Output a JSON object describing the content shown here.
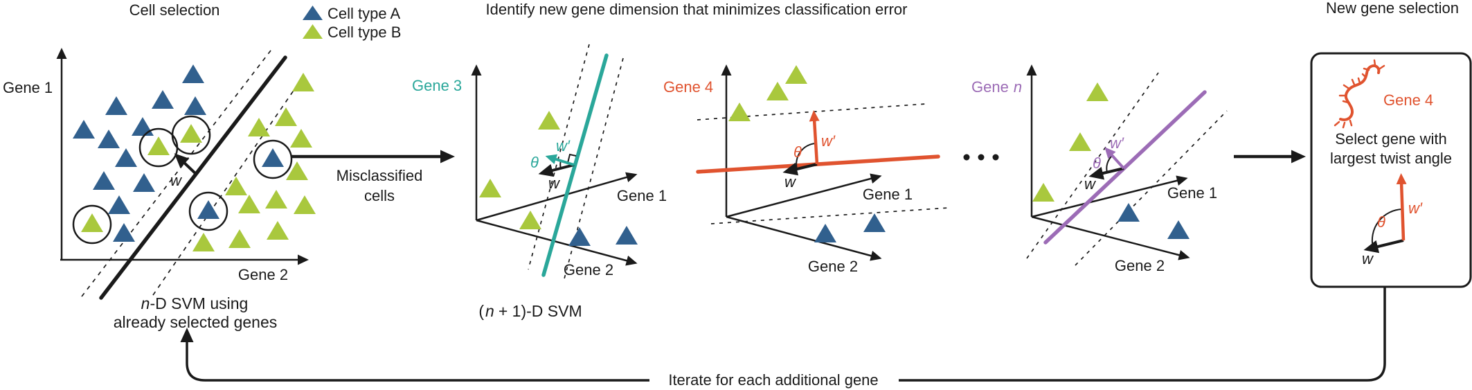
{
  "colors": {
    "ink": "#1a1a1a",
    "blue": "#31608e",
    "green": "#a9c83d",
    "teal": "#2aa79a",
    "orange": "#e0532f",
    "purple": "#9c6cb6"
  },
  "header": {
    "cell_selection": "Cell selection",
    "identify": "Identify new gene dimension that minimizes classification error",
    "new_gene_selection": "New gene selection"
  },
  "legend": {
    "type_a": "Cell type A",
    "type_b": "Cell type B"
  },
  "left_plot": {
    "y_axis_label": "Gene 1",
    "x_axis_label": "Gene 2",
    "w_label": "w",
    "caption": {
      "italic_n": "n",
      "line1_rest": "-D SVM using",
      "line2": "already selected genes"
    },
    "blue_points": [
      [
        279,
        107
      ],
      [
        235,
        144
      ],
      [
        282,
        153
      ],
      [
        168,
        153
      ],
      [
        121,
        187
      ],
      [
        206,
        183
      ],
      [
        157,
        201
      ],
      [
        182,
        228
      ],
      [
        150,
        261
      ],
      [
        208,
        264
      ],
      [
        172,
        296
      ],
      [
        179,
        336
      ],
      [
        301,
        303
      ],
      [
        394,
        228
      ]
    ],
    "green_points": [
      [
        438,
        119
      ],
      [
        413,
        169
      ],
      [
        374,
        184
      ],
      [
        435,
        200
      ],
      [
        276,
        193
      ],
      [
        229,
        211
      ],
      [
        341,
        269
      ],
      [
        429,
        247
      ],
      [
        360,
        295
      ],
      [
        399,
        288
      ],
      [
        440,
        296
      ],
      [
        133,
        322
      ],
      [
        294,
        350
      ],
      [
        346,
        345
      ],
      [
        401,
        333
      ]
    ],
    "circles": [
      [
        276,
        195
      ],
      [
        229,
        213
      ],
      [
        133,
        324
      ],
      [
        301,
        305
      ],
      [
        394,
        230
      ]
    ]
  },
  "flow": {
    "misclassified_line1": "Misclassified",
    "misclassified_line2": "cells",
    "iterate": "Iterate for each additional gene"
  },
  "svm_caption": {
    "open": "(",
    "italic_n": "n",
    "rest": "+ 1)-D SVM"
  },
  "gene3": {
    "label": "Gene 3",
    "axis1": "Gene 1",
    "axis2": "Gene 2",
    "w": "w",
    "w_prime": "w′",
    "theta": "θ",
    "green_points": [
      [
        793,
        174
      ],
      [
        708,
        272
      ],
      [
        766,
        318
      ]
    ],
    "blue_points": [
      [
        837,
        342
      ],
      [
        905,
        340
      ]
    ]
  },
  "gene4": {
    "label": "Gene 4",
    "axis1": "Gene 1",
    "axis2": "Gene 2",
    "w": "w",
    "w_prime": "w′",
    "theta": "θ",
    "green_points": [
      [
        1150,
        108
      ],
      [
        1123,
        132
      ],
      [
        1068,
        162
      ]
    ],
    "blue_points": [
      [
        1192,
        337
      ],
      [
        1263,
        322
      ]
    ]
  },
  "gene_n": {
    "label_prefix": "Gene",
    "label_italic": "n",
    "axis1": "Gene 1",
    "axis2": "Gene 2",
    "w": "w",
    "w_prime": "w′",
    "theta": "θ",
    "green_points": [
      [
        1585,
        133
      ],
      [
        1560,
        205
      ],
      [
        1507,
        278
      ]
    ],
    "blue_points": [
      [
        1630,
        307
      ],
      [
        1702,
        332
      ]
    ]
  },
  "box": {
    "gene": "Gene 4",
    "line1": "Select gene with",
    "line2": "largest twist angle",
    "w": "w",
    "w_prime": "w′",
    "theta": "θ"
  }
}
